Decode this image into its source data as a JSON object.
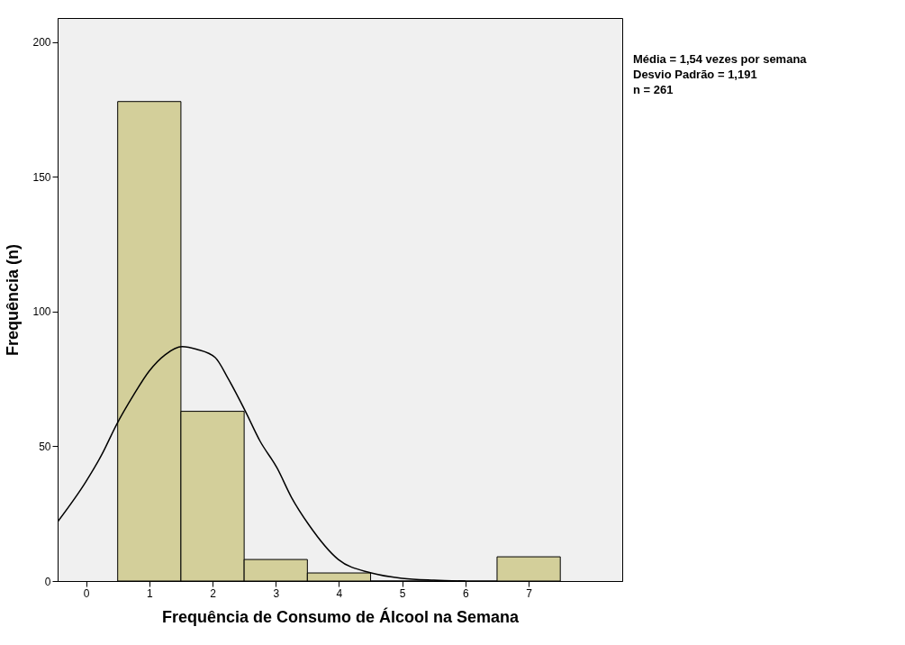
{
  "chart_data": {
    "type": "histogram",
    "xlabel": "Frequência de Consumo de Álcool na Semana",
    "ylabel": "Frequência (n)",
    "bins": [
      0.5,
      1.5,
      2.5,
      3.5,
      4.5,
      5.5,
      6.5,
      7.5
    ],
    "values": [
      178,
      63,
      8,
      3,
      0,
      0,
      9
    ],
    "color": "#d3cf9a",
    "series": [
      {
        "type": "line",
        "color": "#000000",
        "x": [
          -0.45,
          0.0,
          0.25,
          0.48,
          0.75,
          1.0,
          1.25,
          1.52,
          1.75,
          2.04,
          2.25,
          2.52,
          2.75,
          3.02,
          3.25,
          3.52,
          3.99,
          4.51,
          5.0,
          5.5,
          6.0
        ],
        "values": [
          22,
          37,
          47,
          58,
          69,
          78,
          84,
          87,
          86,
          83,
          75,
          63,
          52,
          42,
          31,
          21,
          8,
          3,
          1,
          0.3,
          0
        ]
      }
    ],
    "xlim": [
      -0.45,
      8.48
    ],
    "xticks": [
      0,
      1,
      2,
      3,
      4,
      5,
      6,
      7
    ],
    "ylim": [
      0,
      209
    ],
    "yticks": [
      0,
      50,
      100,
      150,
      200
    ],
    "grid": false,
    "annotations": [
      "Média = 1,54 vezes por semana",
      "Desvio Padrão = 1,191",
      "n = 261"
    ]
  }
}
